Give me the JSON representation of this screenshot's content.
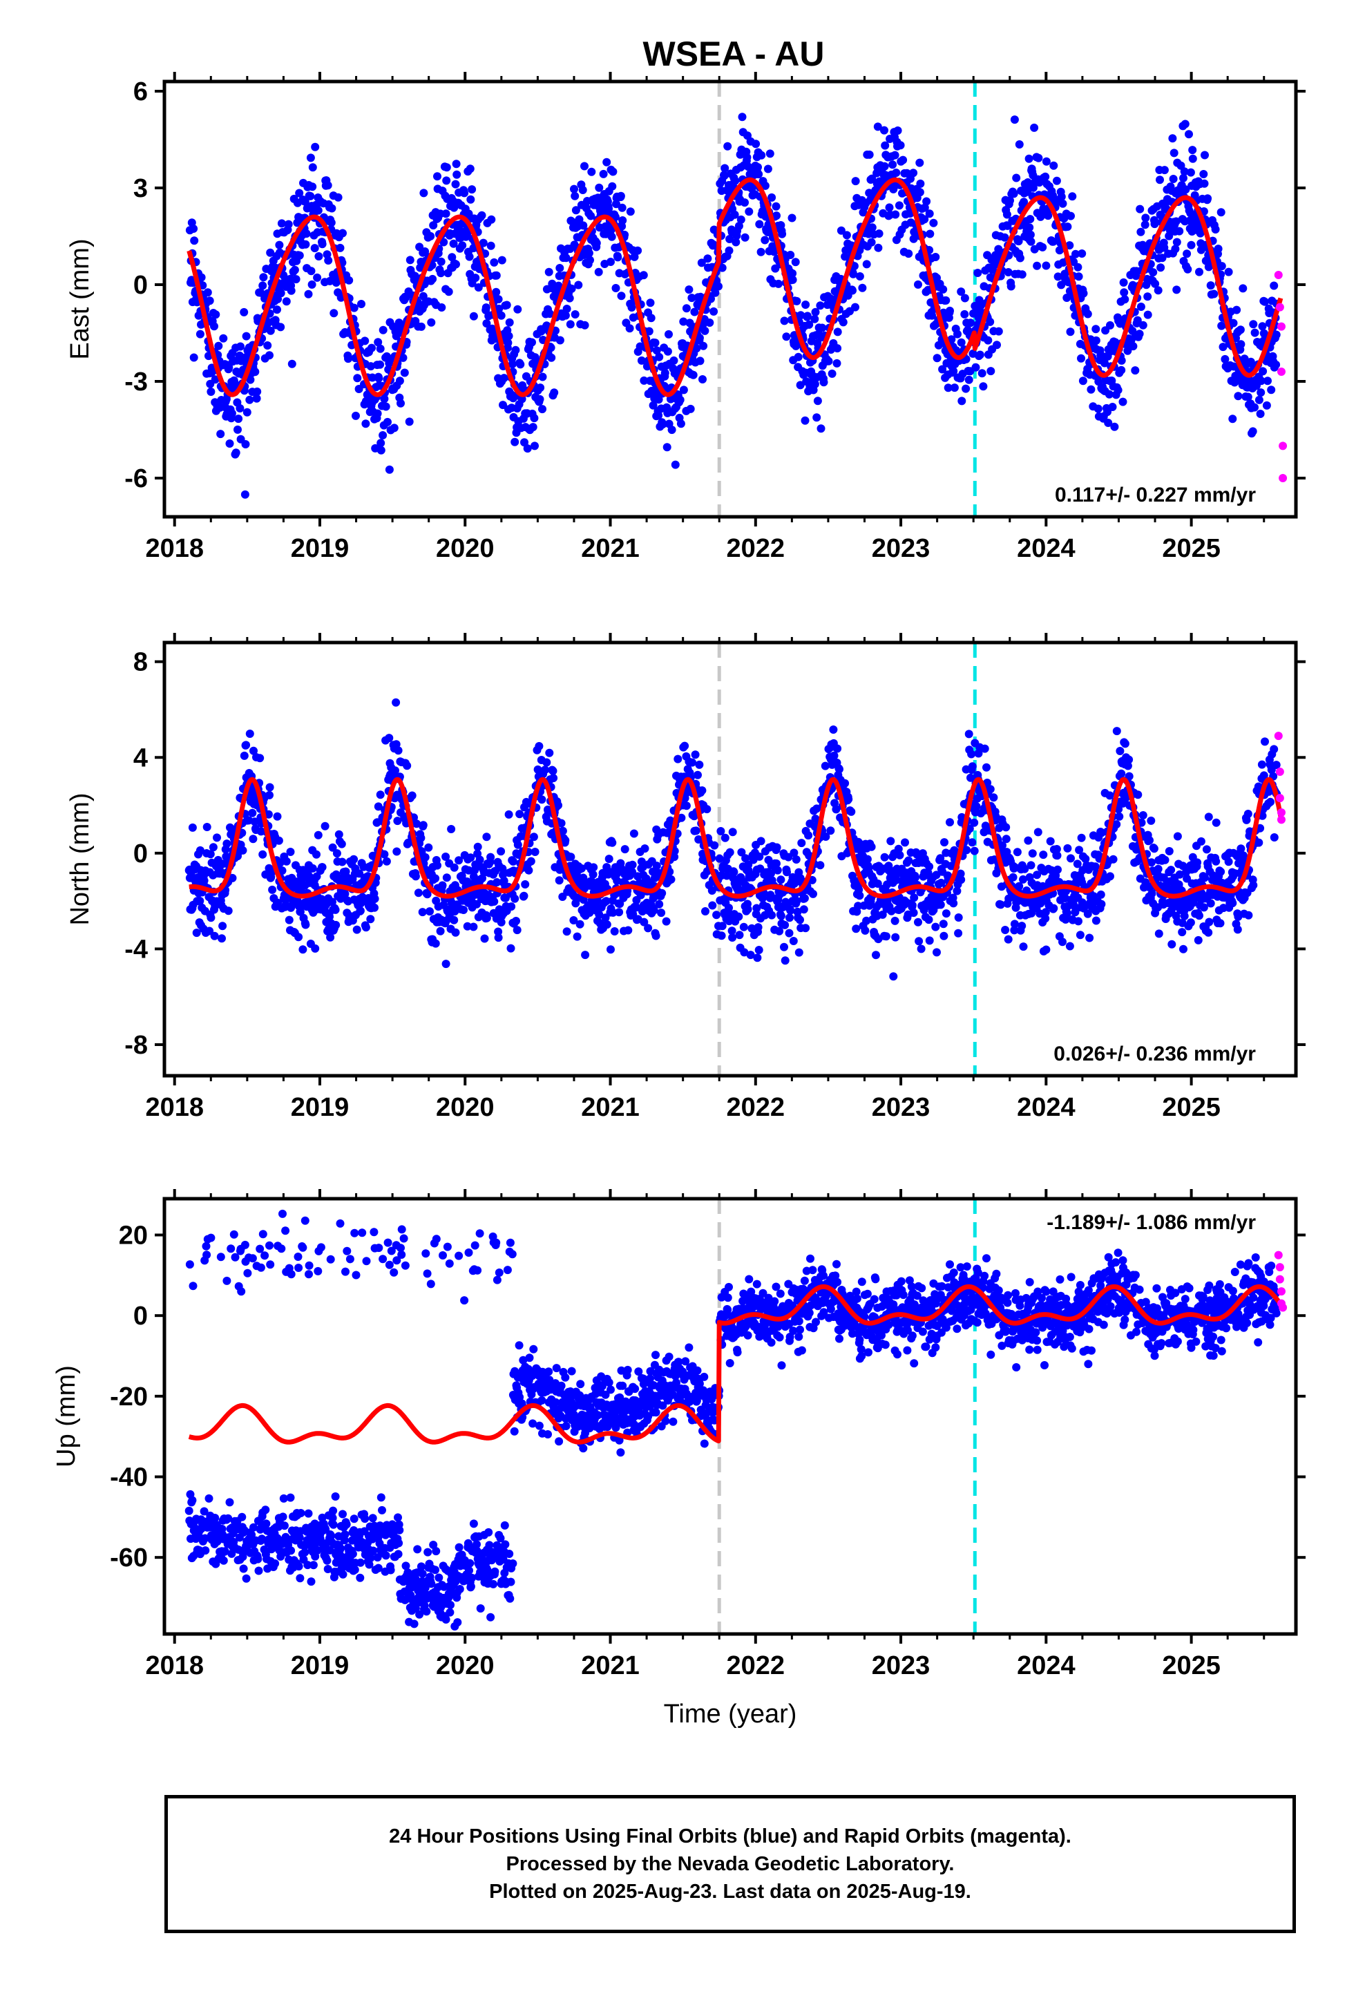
{
  "title": "WSEA - AU",
  "colors": {
    "final_orbits": "#0000ff",
    "rapid_orbits": "#ff00ff",
    "model": "#ff0000",
    "gray_line": "#c8c8c8",
    "cyan_line": "#00e5e5"
  },
  "chart_data": [
    {
      "type": "scatter",
      "component": "East",
      "ylabel": "East (mm)",
      "ylim": [
        -7.2,
        6.3
      ],
      "yticks": [
        -6,
        -3,
        0,
        3,
        6
      ],
      "xlim": [
        2017.93,
        2025.72
      ],
      "xticks": [
        2018,
        2019,
        2020,
        2021,
        2022,
        2023,
        2024,
        2025
      ],
      "rate_label": "0.117+/- 0.227 mm/yr",
      "vertical_lines": [
        {
          "x": 2021.75,
          "style": "gray-dashed"
        },
        {
          "x": 2023.51,
          "style": "cyan-dashed"
        }
      ],
      "model": {
        "amplitude": 2.7,
        "peak_phase": 0.92,
        "offset_before_2021_75": -0.45,
        "offset_2021_75_to_2023_51": 0.7,
        "offset_after_2023_51": 0.15,
        "scatter_sigma": 0.9
      },
      "rapid_points": [
        {
          "x": 2025.6,
          "y": 0.3
        },
        {
          "x": 2025.61,
          "y": -0.7
        },
        {
          "x": 2025.62,
          "y": -1.3
        },
        {
          "x": 2025.62,
          "y": -2.7
        },
        {
          "x": 2025.63,
          "y": -5.0
        },
        {
          "x": 2025.63,
          "y": -6.0
        }
      ]
    },
    {
      "type": "scatter",
      "component": "North",
      "ylabel": "North (mm)",
      "ylim": [
        -9.3,
        8.8
      ],
      "yticks": [
        -8,
        -4,
        0,
        4,
        8
      ],
      "xlim": [
        2017.93,
        2025.72
      ],
      "xticks": [
        2018,
        2019,
        2020,
        2021,
        2022,
        2023,
        2024,
        2025
      ],
      "rate_label": "0.026+/- 0.236 mm/yr",
      "vertical_lines": [
        {
          "x": 2021.75,
          "style": "gray-dashed"
        },
        {
          "x": 2023.51,
          "style": "cyan-dashed"
        }
      ],
      "model": {
        "baseline": -1.6,
        "peak_height": 4.6,
        "peak_phase": 0.53,
        "peak_width": 0.09,
        "scatter_sigma": 1.0
      },
      "rapid_points": [
        {
          "x": 2025.6,
          "y": 4.9
        },
        {
          "x": 2025.61,
          "y": 3.4
        },
        {
          "x": 2025.61,
          "y": 2.3
        },
        {
          "x": 2025.62,
          "y": 1.7
        },
        {
          "x": 2025.62,
          "y": 1.4
        }
      ]
    },
    {
      "type": "scatter",
      "component": "Up",
      "ylabel": "Up (mm)",
      "xlabel": "Time (year)",
      "ylim": [
        -79,
        29
      ],
      "yticks": [
        -60,
        -40,
        -20,
        0,
        20
      ],
      "xlim": [
        2017.93,
        2025.72
      ],
      "xticks": [
        2018,
        2019,
        2020,
        2021,
        2022,
        2023,
        2024,
        2025
      ],
      "rate_label": "-1.189+/- 1.086 mm/yr",
      "vertical_lines": [
        {
          "x": 2021.75,
          "style": "gray-dashed"
        },
        {
          "x": 2023.51,
          "style": "cyan-dashed"
        }
      ],
      "model": {
        "model_level_before_2021_75": -28,
        "model_level_after_2021_75": 1.5,
        "high_cluster_level": 15,
        "low_cluster_level_2018": -56,
        "low_cluster_level_2019_5": -68,
        "low_cluster_level_2020": -62,
        "cluster_end": 2020.33,
        "scatter_sigma": 4.0
      },
      "rapid_points": [
        {
          "x": 2025.6,
          "y": 15
        },
        {
          "x": 2025.61,
          "y": 12
        },
        {
          "x": 2025.61,
          "y": 9
        },
        {
          "x": 2025.62,
          "y": 6
        },
        {
          "x": 2025.62,
          "y": 3
        },
        {
          "x": 2025.63,
          "y": 2
        }
      ]
    }
  ],
  "footer": {
    "line1": "24 Hour Positions Using Final Orbits (blue) and Rapid Orbits (magenta).",
    "line2": "Processed by the Nevada Geodetic Laboratory.",
    "line3": "Plotted on 2025-Aug-23. Last data on 2025-Aug-19."
  }
}
